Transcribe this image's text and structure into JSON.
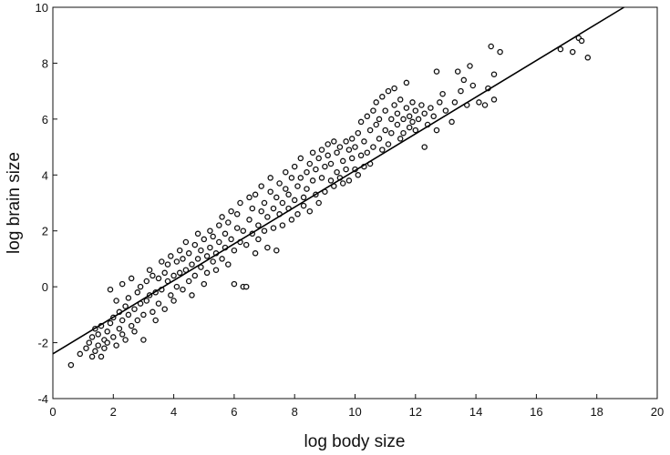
{
  "chart_data": {
    "type": "scatter",
    "title": "",
    "xlabel": "log body size",
    "ylabel": "log brain size",
    "xlim": [
      0,
      20
    ],
    "ylim": [
      -4,
      10
    ],
    "xticks": [
      0,
      2,
      4,
      6,
      8,
      10,
      12,
      14,
      16,
      18,
      20
    ],
    "yticks": [
      -4,
      -2,
      0,
      2,
      4,
      6,
      8,
      10
    ],
    "grid": false,
    "legend": "none",
    "marker": {
      "shape": "open-circle",
      "color": "#111111"
    },
    "fit_line": {
      "x": [
        0,
        18.9
      ],
      "y": [
        -2.4,
        10.0
      ],
      "color": "#000000"
    },
    "series": [
      {
        "points": [
          [
            0.6,
            -2.8
          ],
          [
            0.9,
            -2.4
          ],
          [
            1.1,
            -2.2
          ],
          [
            1.2,
            -2.0
          ],
          [
            1.3,
            -2.5
          ],
          [
            1.3,
            -1.8
          ],
          [
            1.4,
            -2.3
          ],
          [
            1.4,
            -1.5
          ],
          [
            1.5,
            -2.1
          ],
          [
            1.5,
            -1.7
          ],
          [
            1.6,
            -2.5
          ],
          [
            1.6,
            -1.4
          ],
          [
            1.7,
            -1.9
          ],
          [
            1.7,
            -2.2
          ],
          [
            1.8,
            -1.6
          ],
          [
            1.8,
            -2.0
          ],
          [
            1.9,
            -0.1
          ],
          [
            1.9,
            -1.3
          ],
          [
            2.0,
            -1.8
          ],
          [
            2.0,
            -1.1
          ],
          [
            2.1,
            -0.5
          ],
          [
            2.1,
            -2.1
          ],
          [
            2.2,
            -1.5
          ],
          [
            2.2,
            -0.9
          ],
          [
            2.3,
            -1.7
          ],
          [
            2.3,
            -1.2
          ],
          [
            2.3,
            0.1
          ],
          [
            2.4,
            -0.7
          ],
          [
            2.4,
            -1.9
          ],
          [
            2.5,
            -1.0
          ],
          [
            2.5,
            -0.4
          ],
          [
            2.6,
            -1.4
          ],
          [
            2.6,
            0.3
          ],
          [
            2.7,
            -0.8
          ],
          [
            2.7,
            -1.6
          ],
          [
            2.8,
            -0.2
          ],
          [
            2.8,
            -1.2
          ],
          [
            2.9,
            0.0
          ],
          [
            2.9,
            -0.6
          ],
          [
            3.0,
            -1.0
          ],
          [
            3.0,
            -1.9
          ],
          [
            3.1,
            0.2
          ],
          [
            3.1,
            -0.5
          ],
          [
            3.2,
            0.6
          ],
          [
            3.2,
            -0.3
          ],
          [
            3.3,
            -0.9
          ],
          [
            3.3,
            0.4
          ],
          [
            3.4,
            -0.2
          ],
          [
            3.4,
            -1.2
          ],
          [
            3.5,
            0.3
          ],
          [
            3.5,
            -0.6
          ],
          [
            3.6,
            0.9
          ],
          [
            3.6,
            -0.1
          ],
          [
            3.7,
            0.5
          ],
          [
            3.7,
            -0.8
          ],
          [
            3.8,
            0.2
          ],
          [
            3.8,
            0.8
          ],
          [
            3.9,
            -0.3
          ],
          [
            3.9,
            1.1
          ],
          [
            4.0,
            0.4
          ],
          [
            4.0,
            -0.5
          ],
          [
            4.1,
            0.9
          ],
          [
            4.1,
            0.0
          ],
          [
            4.2,
            1.3
          ],
          [
            4.2,
            0.5
          ],
          [
            4.3,
            -0.1
          ],
          [
            4.3,
            1.0
          ],
          [
            4.4,
            0.6
          ],
          [
            4.4,
            1.6
          ],
          [
            4.5,
            0.2
          ],
          [
            4.5,
            1.2
          ],
          [
            4.6,
            0.8
          ],
          [
            4.6,
            -0.3
          ],
          [
            4.7,
            1.5
          ],
          [
            4.7,
            0.4
          ],
          [
            4.8,
            1.0
          ],
          [
            4.8,
            1.9
          ],
          [
            4.9,
            0.7
          ],
          [
            4.9,
            1.3
          ],
          [
            5.0,
            0.1
          ],
          [
            5.0,
            1.7
          ],
          [
            5.1,
            1.1
          ],
          [
            5.1,
            0.5
          ],
          [
            5.2,
            2.0
          ],
          [
            5.2,
            1.4
          ],
          [
            5.3,
            0.9
          ],
          [
            5.3,
            1.8
          ],
          [
            5.4,
            1.2
          ],
          [
            5.4,
            0.6
          ],
          [
            5.5,
            2.2
          ],
          [
            5.5,
            1.6
          ],
          [
            5.6,
            1.0
          ],
          [
            5.6,
            2.5
          ],
          [
            5.7,
            1.4
          ],
          [
            5.7,
            1.9
          ],
          [
            5.8,
            0.8
          ],
          [
            5.8,
            2.3
          ],
          [
            5.9,
            1.7
          ],
          [
            5.9,
            2.7
          ],
          [
            6.0,
            0.1
          ],
          [
            6.0,
            1.3
          ],
          [
            6.1,
            2.1
          ],
          [
            6.1,
            2.6
          ],
          [
            6.2,
            1.6
          ],
          [
            6.2,
            3.0
          ],
          [
            6.3,
            0.0
          ],
          [
            6.3,
            2.0
          ],
          [
            6.4,
            0.0
          ],
          [
            6.4,
            1.5
          ],
          [
            6.5,
            2.4
          ],
          [
            6.5,
            3.2
          ],
          [
            6.6,
            1.9
          ],
          [
            6.6,
            2.8
          ],
          [
            6.7,
            1.2
          ],
          [
            6.7,
            3.3
          ],
          [
            6.8,
            2.2
          ],
          [
            6.8,
            1.7
          ],
          [
            6.9,
            2.7
          ],
          [
            6.9,
            3.6
          ],
          [
            7.0,
            2.0
          ],
          [
            7.0,
            3.0
          ],
          [
            7.1,
            1.4
          ],
          [
            7.1,
            2.5
          ],
          [
            7.2,
            3.4
          ],
          [
            7.2,
            3.9
          ],
          [
            7.3,
            2.8
          ],
          [
            7.3,
            2.1
          ],
          [
            7.4,
            3.2
          ],
          [
            7.4,
            1.3
          ],
          [
            7.5,
            2.6
          ],
          [
            7.5,
            3.7
          ],
          [
            7.6,
            3.0
          ],
          [
            7.6,
            2.2
          ],
          [
            7.7,
            3.5
          ],
          [
            7.7,
            4.1
          ],
          [
            7.8,
            2.8
          ],
          [
            7.8,
            3.3
          ],
          [
            7.9,
            2.4
          ],
          [
            7.9,
            3.9
          ],
          [
            8.0,
            3.1
          ],
          [
            8.0,
            4.3
          ],
          [
            8.1,
            3.6
          ],
          [
            8.1,
            2.6
          ],
          [
            8.2,
            3.9
          ],
          [
            8.2,
            4.6
          ],
          [
            8.3,
            3.2
          ],
          [
            8.3,
            2.9
          ],
          [
            8.4,
            4.1
          ],
          [
            8.4,
            3.5
          ],
          [
            8.5,
            4.4
          ],
          [
            8.5,
            2.7
          ],
          [
            8.6,
            3.8
          ],
          [
            8.6,
            4.8
          ],
          [
            8.7,
            3.3
          ],
          [
            8.7,
            4.2
          ],
          [
            8.8,
            4.6
          ],
          [
            8.8,
            3.0
          ],
          [
            8.9,
            3.9
          ],
          [
            8.9,
            4.9
          ],
          [
            9.0,
            4.3
          ],
          [
            9.0,
            3.4
          ],
          [
            9.1,
            4.7
          ],
          [
            9.1,
            5.1
          ],
          [
            9.2,
            3.8
          ],
          [
            9.2,
            4.4
          ],
          [
            9.3,
            5.2
          ],
          [
            9.3,
            3.6
          ],
          [
            9.4,
            4.8
          ],
          [
            9.4,
            4.1
          ],
          [
            9.5,
            3.9
          ],
          [
            9.5,
            5.0
          ],
          [
            9.6,
            4.5
          ],
          [
            9.6,
            3.7
          ],
          [
            9.7,
            5.2
          ],
          [
            9.7,
            4.2
          ],
          [
            9.8,
            4.9
          ],
          [
            9.8,
            3.8
          ],
          [
            9.9,
            4.6
          ],
          [
            9.9,
            5.3
          ],
          [
            10.0,
            4.2
          ],
          [
            10.0,
            5.0
          ],
          [
            10.1,
            4.0
          ],
          [
            10.1,
            5.5
          ],
          [
            10.2,
            4.7
          ],
          [
            10.2,
            5.9
          ],
          [
            10.3,
            4.3
          ],
          [
            10.3,
            5.2
          ],
          [
            10.4,
            6.1
          ],
          [
            10.4,
            4.8
          ],
          [
            10.5,
            5.6
          ],
          [
            10.5,
            4.4
          ],
          [
            10.6,
            6.3
          ],
          [
            10.6,
            5.0
          ],
          [
            10.7,
            5.8
          ],
          [
            10.7,
            6.6
          ],
          [
            10.8,
            5.3
          ],
          [
            10.8,
            6.0
          ],
          [
            10.9,
            4.9
          ],
          [
            10.9,
            6.8
          ],
          [
            11.0,
            5.6
          ],
          [
            11.0,
            6.3
          ],
          [
            11.1,
            7.0
          ],
          [
            11.1,
            5.1
          ],
          [
            11.2,
            6.0
          ],
          [
            11.2,
            5.5
          ],
          [
            11.3,
            6.5
          ],
          [
            11.3,
            7.1
          ],
          [
            11.4,
            5.8
          ],
          [
            11.4,
            6.2
          ],
          [
            11.5,
            5.3
          ],
          [
            11.5,
            6.7
          ],
          [
            11.6,
            6.0
          ],
          [
            11.6,
            5.5
          ],
          [
            11.7,
            6.4
          ],
          [
            11.7,
            7.3
          ],
          [
            11.8,
            5.7
          ],
          [
            11.8,
            6.1
          ],
          [
            11.9,
            6.6
          ],
          [
            11.9,
            5.9
          ],
          [
            12.0,
            6.3
          ],
          [
            12.0,
            5.6
          ],
          [
            12.1,
            6.0
          ],
          [
            12.2,
            6.5
          ],
          [
            12.3,
            5.0
          ],
          [
            12.3,
            6.2
          ],
          [
            12.4,
            5.8
          ],
          [
            12.5,
            6.4
          ],
          [
            12.6,
            6.1
          ],
          [
            12.7,
            7.7
          ],
          [
            12.7,
            5.6
          ],
          [
            12.8,
            6.6
          ],
          [
            12.9,
            6.9
          ],
          [
            13.0,
            6.3
          ],
          [
            13.2,
            5.9
          ],
          [
            13.3,
            6.6
          ],
          [
            13.4,
            7.7
          ],
          [
            13.5,
            7.0
          ],
          [
            13.6,
            7.4
          ],
          [
            13.7,
            6.5
          ],
          [
            13.8,
            7.9
          ],
          [
            13.9,
            7.2
          ],
          [
            14.1,
            6.6
          ],
          [
            14.3,
            6.5
          ],
          [
            14.4,
            7.1
          ],
          [
            14.5,
            8.6
          ],
          [
            14.6,
            7.6
          ],
          [
            14.6,
            6.7
          ],
          [
            14.8,
            8.4
          ],
          [
            16.8,
            8.5
          ],
          [
            17.2,
            8.4
          ],
          [
            17.4,
            8.9
          ],
          [
            17.5,
            8.8
          ],
          [
            17.7,
            8.2
          ]
        ]
      }
    ]
  }
}
